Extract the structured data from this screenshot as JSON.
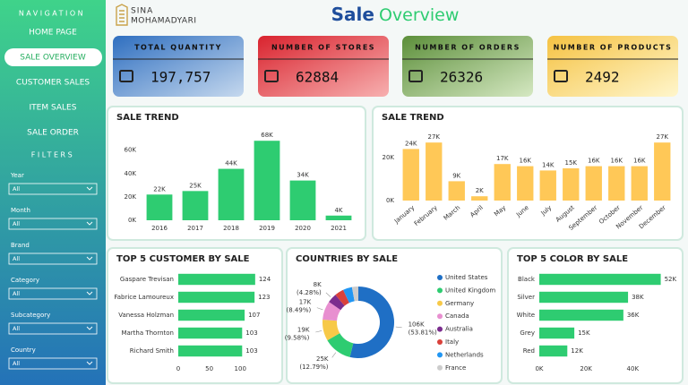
{
  "sidebar": {
    "nav_title": "NAVIGATION",
    "nav": [
      "HOME PAGE",
      "SALE OVERVIEW",
      "CUSTOMER SALES",
      "ITEM SALES",
      "SALE ORDER"
    ],
    "selected": 1,
    "filters_title": "FILTERS",
    "filters": [
      {
        "label": "Year",
        "value": "All"
      },
      {
        "label": "Month",
        "value": "All"
      },
      {
        "label": "Brand",
        "value": "All"
      },
      {
        "label": "Category",
        "value": "All"
      },
      {
        "label": "Subcategory",
        "value": "All"
      },
      {
        "label": "Country",
        "value": "All"
      }
    ]
  },
  "header": {
    "logo_line1": "SINA",
    "logo_line2": "MOHAMADYARI",
    "title_part1": "Sale",
    "title_part2": "Overview"
  },
  "kpis": [
    {
      "label": "TOTAL QUANTITY",
      "value": "197,757"
    },
    {
      "label": "NUMBER OF STORES",
      "value": "62884"
    },
    {
      "label": "NUMBER OF ORDERS",
      "value": "26326"
    },
    {
      "label": "NUMBER OF PRODUCTS",
      "value": "2492"
    }
  ],
  "charts": [
    {
      "type": "bar",
      "title": "SALE TREND",
      "categories": [
        "2016",
        "2017",
        "2018",
        "2019",
        "2020",
        "2021"
      ],
      "values": [
        22000,
        25000,
        44000,
        68000,
        34000,
        4000
      ],
      "value_labels": [
        "22K",
        "25K",
        "44K",
        "68K",
        "34K",
        "4K"
      ],
      "ylim": [
        0,
        72000
      ],
      "yticks": [
        {
          "value": 0,
          "label": "0K"
        },
        {
          "value": 20000,
          "label": "20K"
        },
        {
          "value": 40000,
          "label": "40K"
        },
        {
          "value": 60000,
          "label": "60K"
        }
      ],
      "color": "#2ecc71"
    },
    {
      "type": "bar",
      "title": "SALE TREND",
      "categories": [
        "January",
        "February",
        "March",
        "April",
        "May",
        "June",
        "July",
        "August",
        "September",
        "October",
        "November",
        "December"
      ],
      "values": [
        24000,
        27000,
        9000,
        2000,
        17000,
        16000,
        14000,
        15000,
        16000,
        16000,
        16000,
        27000
      ],
      "value_labels": [
        "24K",
        "27K",
        "9K",
        "2K",
        "17K",
        "16K",
        "14K",
        "15K",
        "16K",
        "16K",
        "16K",
        "27K"
      ],
      "ylim": [
        0,
        30000
      ],
      "yticks": [
        {
          "value": 0,
          "label": "0K"
        },
        {
          "value": 20000,
          "label": "20K"
        }
      ],
      "color": "#ffc857",
      "rotate_labels": true
    },
    {
      "type": "hbar",
      "title": "TOP 5 CUSTOMER BY SALE",
      "categories": [
        "Gaspare Trevisan",
        "Fabrice Lamoureux",
        "Vanessa Holzman",
        "Martha Thornton",
        "Richard Smith"
      ],
      "values": [
        124,
        123,
        107,
        103,
        103
      ],
      "xlim": [
        0,
        130
      ],
      "xticks": [
        0,
        50,
        100
      ],
      "color": "#2ecc71"
    },
    {
      "type": "donut",
      "title": "COUNTRIES BY SALE",
      "categories": [
        "United States",
        "United Kingdom",
        "Germany",
        "Canada",
        "Australia",
        "Italy",
        "Netherlands",
        "France"
      ],
      "colors": [
        "#1f6fc5",
        "#2ecc71",
        "#f7c948",
        "#e88fd0",
        "#7b2d8e",
        "#d9413b",
        "#2196f3",
        "#cccccc"
      ],
      "values": [
        106000,
        25000,
        19000,
        17000,
        8000,
        8100,
        8100,
        5600
      ],
      "value_labels": [
        "106K",
        "25K",
        "19K",
        "17K",
        "8K",
        null,
        null,
        null
      ],
      "shares": [
        53.81,
        12.79,
        9.58,
        8.49,
        4.28,
        4.1,
        4.1,
        2.85
      ],
      "share_labels": [
        "(53.81%)",
        "(12.79%)",
        "(9.58%)",
        "(8.49%)",
        "(4.28%)",
        null,
        null,
        null
      ]
    },
    {
      "type": "hbar",
      "title": "TOP 5 COLOR BY SALE",
      "categories": [
        "Black",
        "Silver",
        "White",
        "Grey",
        "Red"
      ],
      "values": [
        52000,
        38000,
        36000,
        15000,
        12000
      ],
      "value_labels": [
        "52K",
        "38K",
        "36K",
        "15K",
        "12K"
      ],
      "xlim": [
        0,
        56000
      ],
      "xticks": [
        {
          "value": 0,
          "label": "0K"
        },
        {
          "value": 20000,
          "label": "20K"
        },
        {
          "value": 40000,
          "label": "40K"
        }
      ],
      "color": "#2ecc71"
    }
  ]
}
